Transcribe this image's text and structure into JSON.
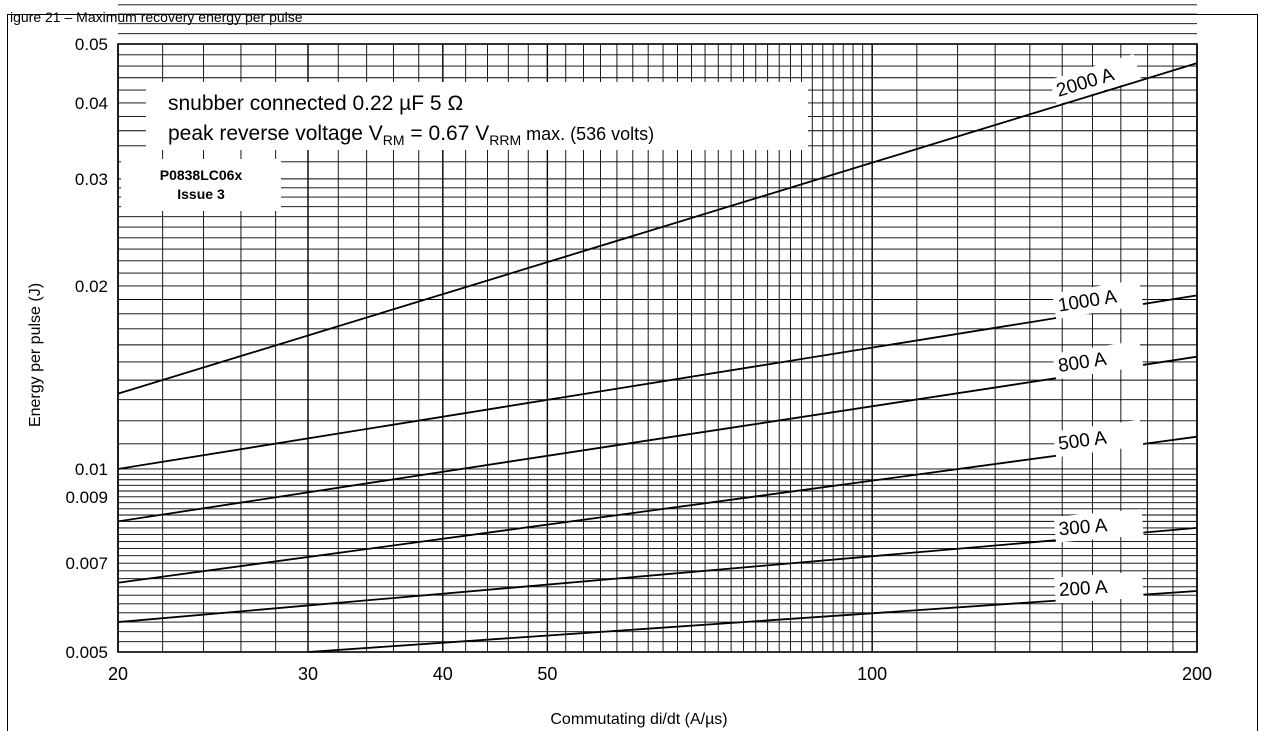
{
  "header": {
    "text": "igure 21 – Maximum recovery energy per pulse"
  },
  "chart_data": {
    "type": "line",
    "title": "",
    "xlabel": "Commutating di/dt (A/µs)",
    "ylabel": "Energy per pulse (J)",
    "x_scale": "log",
    "y_scale": "log",
    "xlim": [
      20,
      200
    ],
    "ylim": [
      0.005,
      0.05
    ],
    "x_ticks": [
      20,
      30,
      40,
      50,
      100,
      200
    ],
    "x_tick_labels": [
      "20",
      "30",
      "40",
      "50",
      "100",
      "200"
    ],
    "y_ticks": [
      0.005,
      0.007,
      0.009,
      0.01,
      0.02,
      0.03,
      0.04,
      0.05
    ],
    "y_tick_labels": [
      "0.005",
      "0.007",
      "0.009",
      "0.01",
      "0.02",
      "0.03",
      "0.04",
      "0.05"
    ],
    "grid": true,
    "series": [
      {
        "name": "2000 A",
        "x": [
          20,
          200
        ],
        "y": [
          0.0133,
          0.0465
        ]
      },
      {
        "name": "1000 A",
        "x": [
          20,
          200
        ],
        "y": [
          0.01,
          0.0193
        ]
      },
      {
        "name": "800 A",
        "x": [
          20,
          200
        ],
        "y": [
          0.0082,
          0.0153
        ]
      },
      {
        "name": "500 A",
        "x": [
          20,
          200
        ],
        "y": [
          0.0065,
          0.0113
        ]
      },
      {
        "name": "300 A",
        "x": [
          20,
          200
        ],
        "y": [
          0.0056,
          0.008
        ]
      },
      {
        "name": "200 A",
        "x": [
          30,
          200
        ],
        "y": [
          0.005,
          0.0063
        ]
      }
    ],
    "annotations": {
      "line1": "snubber connected 0.22 µF 5 Ω",
      "line2_prefix": "peak reverse voltage V",
      "line2_sub1": "RM",
      "line2_mid": " = 0.67 V",
      "line2_sub2": "RRM",
      "line2_suffix": " max. (536 volts)",
      "badge_line1": "P0838LC06x",
      "badge_line2": "Issue 3"
    }
  }
}
